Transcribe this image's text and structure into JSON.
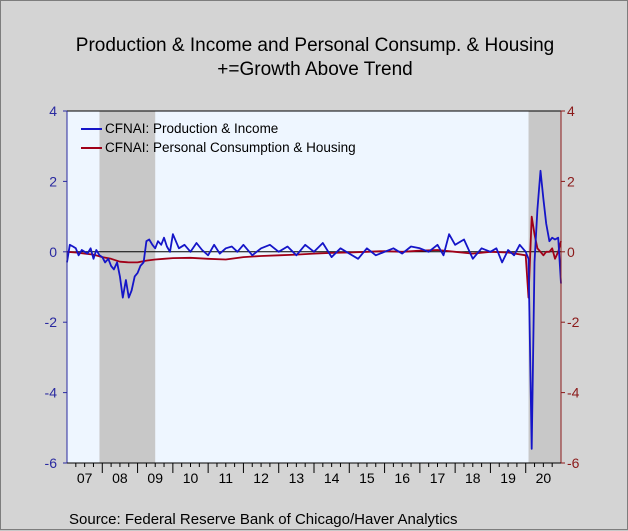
{
  "chart_data": {
    "type": "line",
    "title": "Production & Income and Personal Consump. & Housing",
    "subtitle": "+=Growth Above Trend",
    "source": "Source:  Federal Reserve Bank of Chicago/Haver Analytics",
    "ylim": [
      -6,
      4
    ],
    "yticks": [
      "4",
      "2",
      "0",
      "-2",
      "-4",
      "-6"
    ],
    "y_right_ticks": [
      "4",
      "2",
      "0",
      "-2",
      "-4",
      "-6"
    ],
    "x_tick_labels": [
      "07",
      "08",
      "09",
      "10",
      "11",
      "12",
      "13",
      "14",
      "15",
      "16",
      "17",
      "18",
      "19",
      "20"
    ],
    "x_range": [
      2007.0,
      2021.0
    ],
    "legend_position": "top-left",
    "grid": false,
    "recessions": [
      [
        2007.92,
        2009.5
      ],
      [
        2020.08,
        2021.0
      ]
    ],
    "colors": {
      "plot_bg": "#eef6ff",
      "recession": "#c8c8c8",
      "production": "#1515c8",
      "consumption": "#a00018"
    },
    "series": [
      {
        "name": "CFNAI: Production & Income",
        "color": "#1515c8",
        "x": [
          2007.0,
          2007.08,
          2007.17,
          2007.25,
          2007.33,
          2007.42,
          2007.5,
          2007.58,
          2007.67,
          2007.75,
          2007.83,
          2007.92,
          2008.0,
          2008.08,
          2008.17,
          2008.25,
          2008.33,
          2008.42,
          2008.5,
          2008.58,
          2008.67,
          2008.75,
          2008.83,
          2008.92,
          2009.0,
          2009.08,
          2009.17,
          2009.25,
          2009.33,
          2009.42,
          2009.5,
          2009.58,
          2009.67,
          2009.75,
          2009.83,
          2009.92,
          2010.0,
          2010.17,
          2010.33,
          2010.5,
          2010.67,
          2010.83,
          2011.0,
          2011.17,
          2011.33,
          2011.5,
          2011.67,
          2011.83,
          2012.0,
          2012.25,
          2012.5,
          2012.75,
          2013.0,
          2013.25,
          2013.5,
          2013.75,
          2014.0,
          2014.25,
          2014.5,
          2014.75,
          2015.0,
          2015.25,
          2015.5,
          2015.75,
          2016.0,
          2016.25,
          2016.5,
          2016.75,
          2017.0,
          2017.25,
          2017.5,
          2017.67,
          2017.83,
          2018.0,
          2018.25,
          2018.5,
          2018.75,
          2019.0,
          2019.17,
          2019.33,
          2019.5,
          2019.67,
          2019.83,
          2020.0,
          2020.08,
          2020.17,
          2020.25,
          2020.33,
          2020.42,
          2020.5,
          2020.58,
          2020.67,
          2020.75,
          2020.83,
          2020.92,
          2021.0
        ],
        "values": [
          -0.3,
          0.2,
          0.15,
          0.1,
          -0.1,
          0.05,
          0.0,
          -0.05,
          0.1,
          -0.2,
          0.05,
          -0.1,
          -0.15,
          -0.3,
          -0.2,
          -0.4,
          -0.5,
          -0.3,
          -0.7,
          -1.3,
          -0.8,
          -1.3,
          -1.1,
          -0.7,
          -0.6,
          -0.4,
          -0.3,
          0.3,
          0.35,
          0.2,
          0.1,
          0.3,
          0.2,
          0.4,
          0.15,
          0.0,
          0.5,
          0.1,
          0.2,
          0.0,
          0.25,
          0.05,
          -0.1,
          0.2,
          -0.05,
          0.1,
          0.15,
          0.0,
          0.2,
          -0.1,
          0.1,
          0.2,
          0.0,
          0.15,
          -0.1,
          0.2,
          0.0,
          0.25,
          -0.15,
          0.1,
          -0.05,
          -0.2,
          0.1,
          -0.1,
          0.0,
          0.1,
          -0.05,
          0.15,
          0.1,
          0.0,
          0.2,
          -0.1,
          0.5,
          0.2,
          0.35,
          -0.2,
          0.1,
          0.0,
          0.1,
          -0.3,
          0.05,
          -0.1,
          0.2,
          0.0,
          -0.2,
          -5.6,
          -0.3,
          1.2,
          2.3,
          1.5,
          0.8,
          0.3,
          0.4,
          0.35,
          0.4,
          -0.9
        ]
      },
      {
        "name": "CFNAI: Personal Consumption & Housing",
        "color": "#a00018",
        "x": [
          2007.0,
          2007.25,
          2007.5,
          2007.75,
          2008.0,
          2008.25,
          2008.5,
          2008.75,
          2009.0,
          2009.25,
          2009.5,
          2009.75,
          2010.0,
          2010.5,
          2011.0,
          2011.5,
          2012.0,
          2012.5,
          2013.0,
          2013.5,
          2014.0,
          2014.5,
          2015.0,
          2015.5,
          2016.0,
          2016.5,
          2017.0,
          2017.5,
          2018.0,
          2018.5,
          2019.0,
          2019.5,
          2020.0,
          2020.08,
          2020.17,
          2020.25,
          2020.33,
          2020.42,
          2020.5,
          2020.58,
          2020.67,
          2020.75,
          2020.83,
          2020.92,
          2021.0
        ],
        "values": [
          0.0,
          -0.02,
          -0.05,
          -0.08,
          -0.15,
          -0.2,
          -0.28,
          -0.3,
          -0.3,
          -0.25,
          -0.22,
          -0.2,
          -0.18,
          -0.17,
          -0.2,
          -0.22,
          -0.15,
          -0.12,
          -0.1,
          -0.08,
          -0.05,
          -0.03,
          -0.02,
          0.0,
          0.02,
          0.0,
          0.03,
          0.05,
          0.0,
          -0.05,
          0.0,
          -0.02,
          -0.1,
          -1.3,
          1.0,
          0.5,
          0.1,
          0.0,
          -0.1,
          0.0,
          0.0,
          0.1,
          -0.2,
          0.0,
          0.3
        ]
      }
    ]
  }
}
